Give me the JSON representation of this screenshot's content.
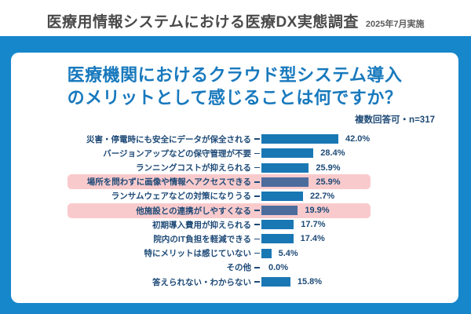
{
  "header": {
    "title": "医療用情報システムにおける医療DX実態調査",
    "date_note": "2025年7月実施"
  },
  "card": {
    "question_line1": "医療機関におけるクラウド型システム導入",
    "question_line2": "のメリットとして感じることは何ですか？",
    "note": "複数回答可・n=317"
  },
  "chart_data": {
    "type": "bar",
    "orientation": "horizontal",
    "unit": "%",
    "title": "医療機関におけるクラウド型システム導入のメリットとして感じることは何ですか？",
    "subtitle": "複数回答可・n=317",
    "categories": [
      "災害・停電時にも安全にデータが保全される",
      "バージョンアップなどの保守管理が不要",
      "ランニングコストが抑えられる",
      "場所を問わずに画像や情報へアクセスできる",
      "ランサムウェアなどの対策になりうる",
      "他施設との連携がしやすくなる",
      "初期導入費用が抑えられる",
      "院内のIT負担を軽減できる",
      "特にメリットは感じていない",
      "その他",
      "答えられない・わからない"
    ],
    "values": [
      42.0,
      28.4,
      25.9,
      25.9,
      22.7,
      19.9,
      17.7,
      17.4,
      5.4,
      0.0,
      15.8
    ],
    "value_labels": [
      "42.0%",
      "28.4%",
      "25.9%",
      "25.9%",
      "22.7%",
      "19.9%",
      "17.7%",
      "17.4%",
      "5.4%",
      "0.0%",
      "15.8%"
    ],
    "highlighted_indices": [
      3,
      5
    ],
    "xlim": [
      0,
      45
    ],
    "grid": false,
    "legend": "none",
    "colors": {
      "frame_blue": "#1787cb",
      "title_blue": "#1879bd",
      "bar": "#1977b4",
      "highlight_bar": "#4c6c9c",
      "highlight_background": "#f9cacc",
      "text_navy": "#1e4a77"
    }
  }
}
